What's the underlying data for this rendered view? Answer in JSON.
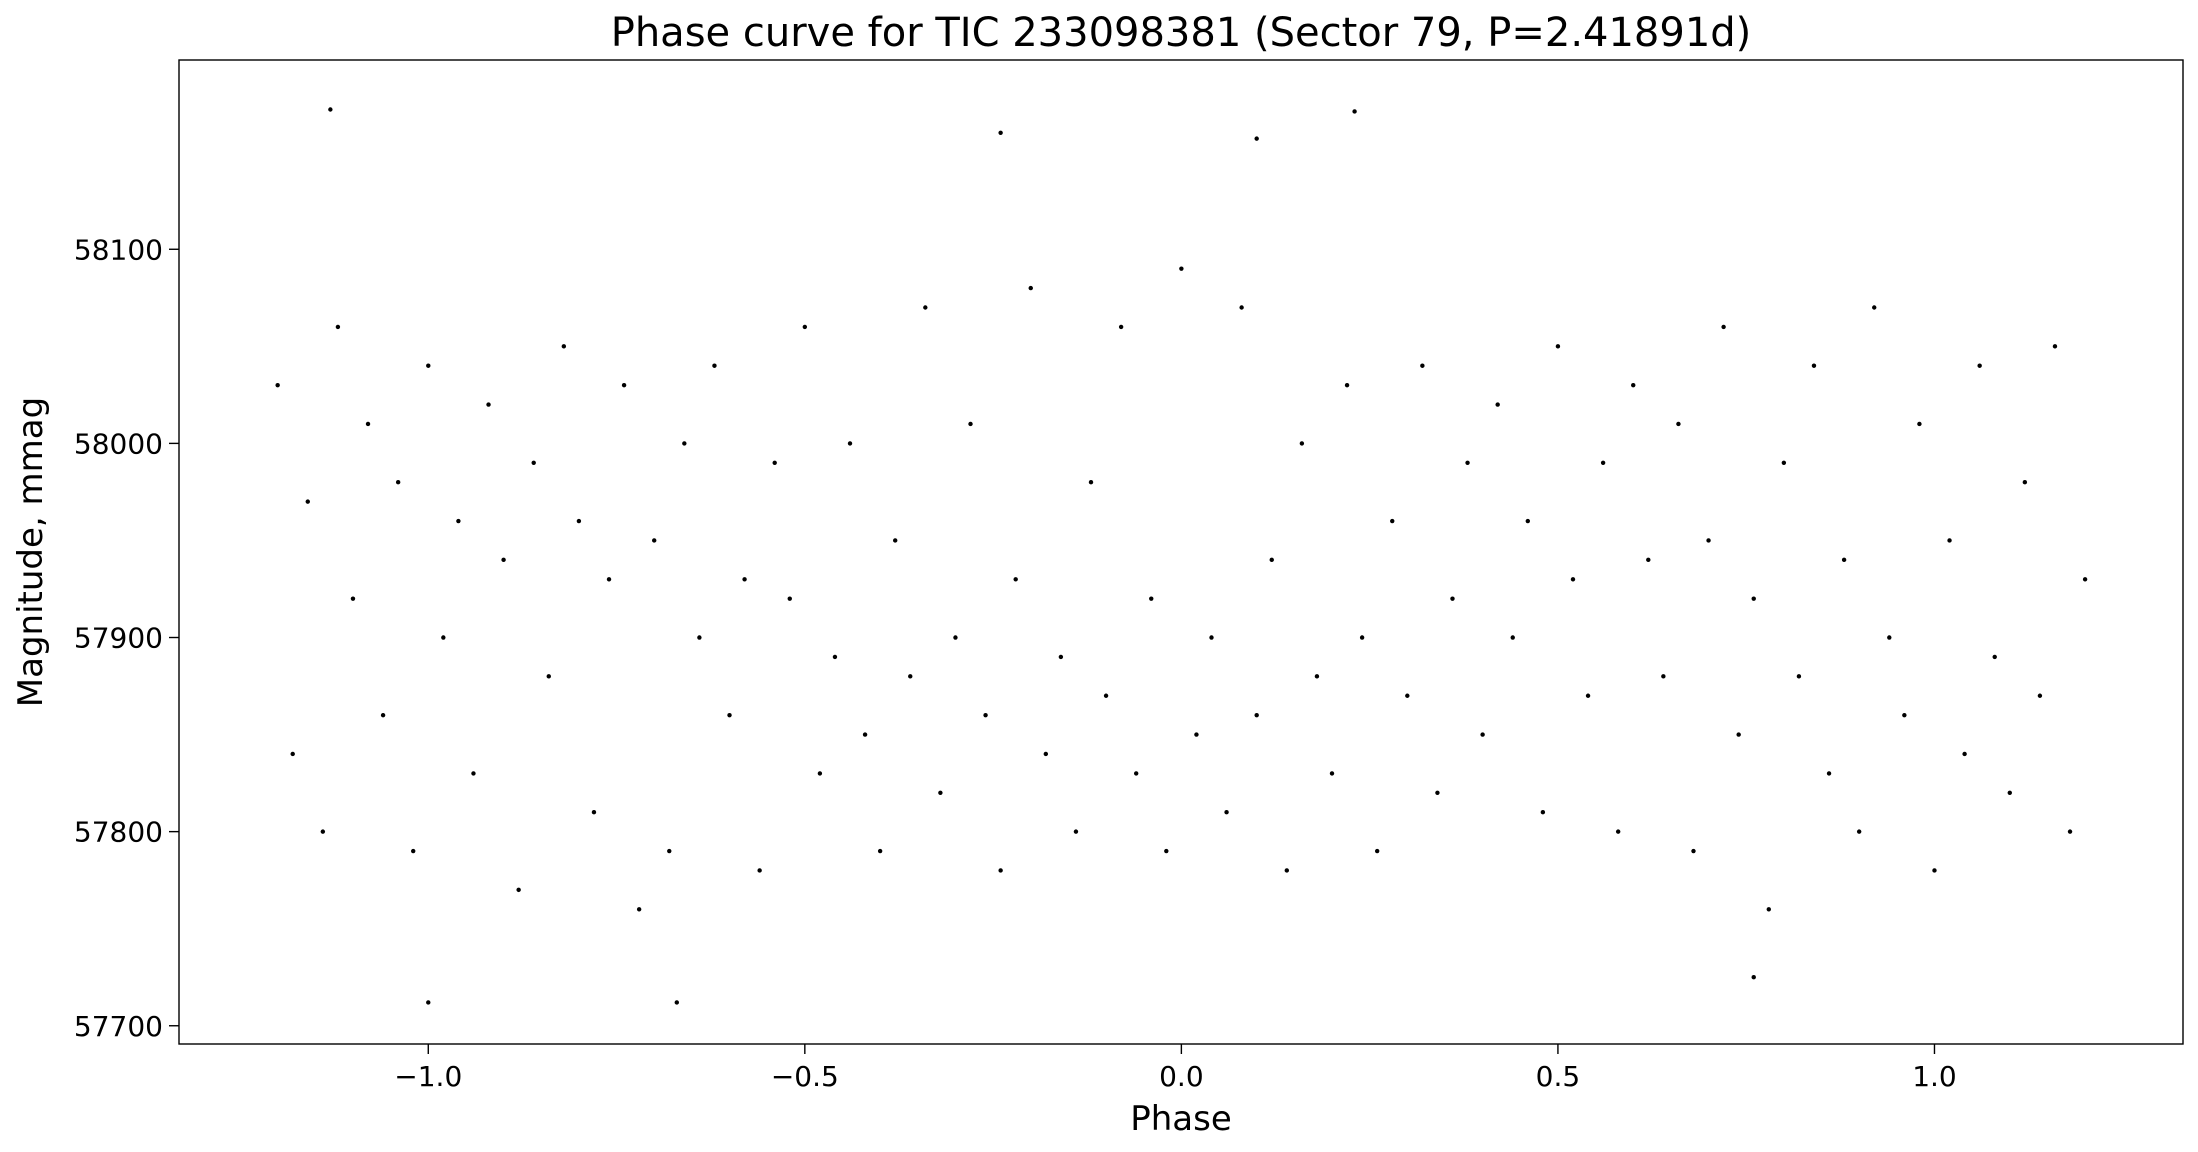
{
  "chart_data": {
    "type": "scatter",
    "title": "Phase curve for TIC 233098381 (Sector 79, P=2.41891d)",
    "x_label": "Phase",
    "y_label": "Magnitude, mmag",
    "color": "#000000",
    "grid": false,
    "xlim": [
      -1.331,
      1.33
    ],
    "ylim": [
      57690.6,
      58197.5
    ],
    "xticks": [
      {
        "value": -1.0,
        "label": "−1.0"
      },
      {
        "value": -0.5,
        "label": "−0.5"
      },
      {
        "value": 0.0,
        "label": "0.0"
      },
      {
        "value": 0.5,
        "label": "0.5"
      },
      {
        "value": 1.0,
        "label": "1.0"
      }
    ],
    "yticks": [
      57700,
      57800,
      57900,
      58000,
      58100
    ],
    "x": [
      -1.2,
      -1.18,
      -1.16,
      -1.14,
      -1.12,
      -1.1,
      -1.08,
      -1.06,
      -1.04,
      -1.02,
      -1.0,
      -0.98,
      -0.96,
      -0.94,
      -0.92,
      -0.9,
      -0.88,
      -0.86,
      -0.84,
      -0.82,
      -0.8,
      -0.78,
      -0.76,
      -0.74,
      -0.72,
      -0.7,
      -0.68,
      -0.66,
      -0.64,
      -0.62,
      -0.6,
      -0.58,
      -0.56,
      -0.54,
      -0.52,
      -0.5,
      -0.48,
      -0.46,
      -0.44,
      -0.42,
      -0.4,
      -0.38,
      -0.36,
      -0.34,
      -0.32,
      -0.3,
      -0.28,
      -0.26,
      -0.24,
      -0.22,
      -0.2,
      -0.18,
      -0.16,
      -0.14,
      -0.12,
      -0.1,
      -0.08,
      -0.06,
      -0.04,
      -0.02,
      0.0,
      0.02,
      0.04,
      0.06,
      0.08,
      0.1,
      0.12,
      0.14,
      0.16,
      0.18,
      0.2,
      0.22,
      0.24,
      0.26,
      0.28,
      0.3,
      0.32,
      0.34,
      0.36,
      0.38,
      0.4,
      0.42,
      0.44,
      0.46,
      0.48,
      0.5,
      0.52,
      0.54,
      0.56,
      0.58,
      0.6,
      0.62,
      0.64,
      0.66,
      0.68,
      0.7,
      0.72,
      0.74,
      0.76,
      0.78,
      0.8,
      0.82,
      0.84,
      0.86,
      0.88,
      0.9,
      0.92,
      0.94,
      0.96,
      0.98,
      1.0,
      1.02,
      1.04,
      1.06,
      1.08,
      1.1,
      1.12,
      1.14,
      1.16,
      1.18,
      1.2,
      -1.13,
      0.23,
      -0.24,
      0.1,
      -0.67,
      -1.0,
      0.76
    ],
    "values": [
      58030,
      57840,
      57970,
      57800,
      58060,
      57920,
      58010,
      57860,
      57980,
      57790,
      58040,
      57900,
      57960,
      57830,
      58020,
      57940,
      57770,
      57990,
      57880,
      58050,
      57960,
      57810,
      57930,
      58030,
      57760,
      57950,
      57790,
      58000,
      57900,
      58040,
      57860,
      57930,
      57780,
      57990,
      57920,
      58060,
      57830,
      57890,
      58000,
      57850,
      57790,
      57950,
      57880,
      58070,
      57820,
      57900,
      58010,
      57860,
      57780,
      57930,
      58080,
      57840,
      57890,
      57800,
      57980,
      57870,
      58060,
      57830,
      57920,
      57790,
      58090,
      57850,
      57900,
      57810,
      58070,
      57860,
      57940,
      57780,
      58000,
      57880,
      57830,
      58030,
      57900,
      57790,
      57960,
      57870,
      58040,
      57820,
      57920,
      57990,
      57850,
      58020,
      57900,
      57960,
      57810,
      58050,
      57930,
      57870,
      57990,
      57800,
      58030,
      57940,
      57880,
      58010,
      57790,
      57950,
      58060,
      57850,
      57920,
      57760,
      57990,
      57880,
      58040,
      57830,
      57940,
      57800,
      58070,
      57900,
      57860,
      58010,
      57780,
      57950,
      57840,
      58040,
      57890,
      57820,
      57980,
      57870,
      58050,
      57800,
      57930,
      58172,
      58171,
      58160,
      58157,
      57712,
      57712,
      57725
    ]
  }
}
